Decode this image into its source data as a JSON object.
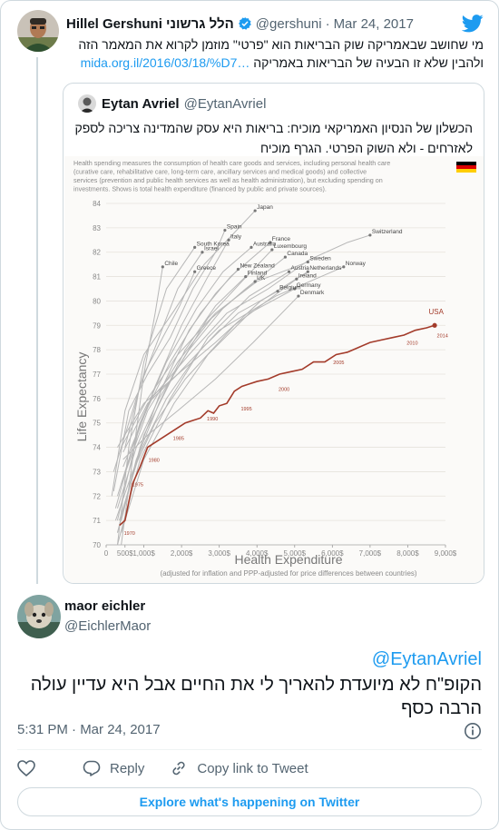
{
  "parent_tweet": {
    "display_name": "Hillel Gershuni הלל גרשוני",
    "handle": "@gershuni",
    "separator": "·",
    "date": "Mar 24, 2017",
    "text_line1": "מי שחושב שבאמריקה שוק הבריאות הוא \"פרטי\" מוזמן לקרוא את המאמר הזה",
    "text_line2_prefix": "ולהבין שלא זו הבעיה של הבריאות באמריקה",
    "link": "mida.org.il/2016/03/18/%D7…",
    "avatar_icon": "person-avatar-icon",
    "verified_icon": "verified-badge-icon",
    "brand_icon": "twitter-bird-icon",
    "accent_color": "#1d9bf0"
  },
  "quoted_tweet": {
    "display_name": "Eytan Avriel",
    "handle": "@EytanAvriel",
    "text": "הכשלון של הנסיון האמריקאי מוכיח: בריאות היא עסק שהמדינה צריכה לספק לאזרחים  - ולא השוק הפרטי. הגרף מוכיח"
  },
  "chart_data": {
    "type": "line",
    "intro": "Health spending measures the consumption of health care goods and services, including personal health care (curative care, rehabilitative care, long-term care, ancillary services and medical goods) and collective services (prevention and public health services as well as health administration), but excluding spending on investments. Shows is total health expenditure (financed by public and private sources).",
    "xlabel": "Health Expenditure",
    "xsubtitle": "(adjusted for inflation and PPP-adjusted for price differences between countries)",
    "ylabel": "Life Expectancy",
    "xlim": [
      0,
      9000
    ],
    "ylim": [
      70,
      84
    ],
    "xticks": [
      "0",
      "500$",
      "1,000$",
      "2,000$",
      "3,000$",
      "4,000$",
      "5,000$",
      "6,000$",
      "7,000$",
      "8,000$",
      "9,000$"
    ],
    "yticks": [
      "70",
      "71",
      "72",
      "73",
      "74",
      "75",
      "76",
      "77",
      "78",
      "79",
      "80",
      "81",
      "82",
      "83",
      "84"
    ],
    "country_labels": [
      {
        "name": "Japan",
        "x": 3950,
        "y": 83.7
      },
      {
        "name": "Spain",
        "x": 3150,
        "y": 82.9
      },
      {
        "name": "Switzerland",
        "x": 7000,
        "y": 82.7
      },
      {
        "name": "Italy",
        "x": 3250,
        "y": 82.5
      },
      {
        "name": "South Korea",
        "x": 2350,
        "y": 82.2
      },
      {
        "name": "Israel",
        "x": 2550,
        "y": 82.0
      },
      {
        "name": "Australia",
        "x": 3850,
        "y": 82.2
      },
      {
        "name": "France",
        "x": 4350,
        "y": 82.4
      },
      {
        "name": "Luxembourg",
        "x": 4400,
        "y": 82.1
      },
      {
        "name": "Canada",
        "x": 4750,
        "y": 81.8
      },
      {
        "name": "Sweden",
        "x": 5350,
        "y": 81.6
      },
      {
        "name": "Norway",
        "x": 6300,
        "y": 81.4
      },
      {
        "name": "Chile",
        "x": 1500,
        "y": 81.4
      },
      {
        "name": "Greece",
        "x": 2350,
        "y": 81.2
      },
      {
        "name": "New Zealand",
        "x": 3500,
        "y": 81.3
      },
      {
        "name": "Finland",
        "x": 3700,
        "y": 81.0
      },
      {
        "name": "UK",
        "x": 3950,
        "y": 80.8
      },
      {
        "name": "Austria",
        "x": 4850,
        "y": 81.2
      },
      {
        "name": "Netherlands",
        "x": 5350,
        "y": 81.2
      },
      {
        "name": "Ireland",
        "x": 5050,
        "y": 80.9
      },
      {
        "name": "Germany",
        "x": 5000,
        "y": 80.5
      },
      {
        "name": "Belgium",
        "x": 4550,
        "y": 80.4
      },
      {
        "name": "Denmark",
        "x": 5100,
        "y": 80.2
      },
      {
        "name": "USA",
        "x": 8700,
        "y": 79.3
      }
    ],
    "series": [
      {
        "name": "USA",
        "x": [
          355,
          500,
          700,
          900,
          1100,
          1300,
          1500,
          1700,
          1900,
          2100,
          2300,
          2500,
          2700,
          2850,
          3000,
          3200,
          3400,
          3600,
          3800,
          4000,
          4300,
          4600,
          4900,
          5200,
          5500,
          5800,
          6100,
          6400,
          6700,
          7000,
          7300,
          7600,
          7900,
          8200,
          8500,
          8713
        ],
        "y": [
          70.8,
          71.0,
          72.5,
          73.2,
          74.0,
          74.2,
          74.4,
          74.6,
          74.8,
          75.0,
          75.1,
          75.2,
          75.5,
          75.4,
          75.7,
          75.8,
          76.3,
          76.5,
          76.6,
          76.7,
          76.8,
          77.0,
          77.1,
          77.2,
          77.5,
          77.5,
          77.8,
          77.9,
          78.1,
          78.3,
          78.4,
          78.5,
          78.6,
          78.8,
          78.9,
          79.0
        ],
        "year_labels": [
          {
            "label": "1970",
            "x": 400,
            "y": 70.7
          },
          {
            "label": "1975",
            "x": 620,
            "y": 72.7
          },
          {
            "label": "1980",
            "x": 1050,
            "y": 73.7
          },
          {
            "label": "1985",
            "x": 1700,
            "y": 74.6
          },
          {
            "label": "1990",
            "x": 2600,
            "y": 75.4
          },
          {
            "label": "1995",
            "x": 3500,
            "y": 75.8
          },
          {
            "label": "2000",
            "x": 4500,
            "y": 76.6
          },
          {
            "label": "2005",
            "x": 5950,
            "y": 77.7
          },
          {
            "label": "2010",
            "x": 7900,
            "y": 78.5
          },
          {
            "label": "2014",
            "x": 8700,
            "y": 78.8
          }
        ]
      }
    ],
    "other_series": [
      {
        "name": "Japan",
        "x": [
          150,
          500,
          1000,
          1800,
          2600,
          3400,
          3950
        ],
        "y": [
          72.0,
          75.5,
          77.8,
          79.6,
          81.5,
          82.8,
          83.7
        ]
      },
      {
        "name": "Spain",
        "x": [
          200,
          600,
          1100,
          1700,
          2300,
          2900,
          3150
        ],
        "y": [
          72.2,
          75.5,
          77.0,
          78.5,
          80.5,
          82.0,
          82.9
        ]
      },
      {
        "name": "Switzerland",
        "x": [
          450,
          1200,
          2200,
          3200,
          4300,
          5400,
          6400,
          7000
        ],
        "y": [
          73.2,
          76.0,
          77.8,
          79.5,
          80.5,
          81.7,
          82.4,
          82.7
        ]
      },
      {
        "name": "Italy",
        "x": [
          250,
          700,
          1300,
          2000,
          2700,
          3250
        ],
        "y": [
          71.5,
          74.0,
          76.5,
          79.0,
          81.0,
          82.5
        ]
      },
      {
        "name": "South Korea",
        "x": [
          100,
          300,
          600,
          1000,
          1600,
          2350
        ],
        "y": [
          62.0,
          69.0,
          74.0,
          77.5,
          80.5,
          82.2
        ]
      },
      {
        "name": "Israel",
        "x": [
          500,
          900,
          1400,
          1900,
          2550
        ],
        "y": [
          74.0,
          76.5,
          78.5,
          80.5,
          82.0
        ]
      },
      {
        "name": "Australia",
        "x": [
          300,
          900,
          1600,
          2400,
          3100,
          3850
        ],
        "y": [
          71.0,
          75.0,
          77.5,
          79.7,
          81.2,
          82.2
        ]
      },
      {
        "name": "France",
        "x": [
          300,
          900,
          1700,
          2500,
          3300,
          4350
        ],
        "y": [
          72.0,
          75.0,
          77.5,
          79.5,
          81.0,
          82.4
        ]
      },
      {
        "name": "Luxembourg",
        "x": [
          300,
          1000,
          1800,
          2700,
          3600,
          4400
        ],
        "y": [
          70.5,
          74.5,
          77.0,
          79.3,
          80.8,
          82.1
        ]
      },
      {
        "name": "Canada",
        "x": [
          400,
          1100,
          1900,
          2800,
          3700,
          4750
        ],
        "y": [
          72.5,
          75.5,
          77.5,
          79.3,
          80.5,
          81.8
        ]
      },
      {
        "name": "Sweden",
        "x": [
          400,
          1100,
          1900,
          2900,
          4000,
          5350
        ],
        "y": [
          74.0,
          76.0,
          77.8,
          79.5,
          80.8,
          81.6
        ]
      },
      {
        "name": "Norway",
        "x": [
          300,
          1000,
          1900,
          3000,
          4500,
          6300
        ],
        "y": [
          74.0,
          75.8,
          77.0,
          78.8,
          80.2,
          81.4
        ]
      },
      {
        "name": "Chile",
        "x": [
          150,
          400,
          700,
          1000,
          1300,
          1500
        ],
        "y": [
          62.0,
          68.0,
          73.5,
          77.0,
          79.5,
          81.4
        ]
      },
      {
        "name": "Greece",
        "x": [
          200,
          600,
          1000,
          1500,
          1950,
          2350
        ],
        "y": [
          73.0,
          75.0,
          77.0,
          78.5,
          79.8,
          81.2
        ]
      },
      {
        "name": "New Zealand",
        "x": [
          400,
          900,
          1500,
          2200,
          2900,
          3500
        ],
        "y": [
          71.0,
          74.0,
          76.5,
          78.8,
          80.3,
          81.3
        ]
      },
      {
        "name": "Finland",
        "x": [
          300,
          800,
          1400,
          2100,
          2900,
          3700
        ],
        "y": [
          70.5,
          73.5,
          75.8,
          78.0,
          79.8,
          81.0
        ]
      },
      {
        "name": "UK",
        "x": [
          300,
          800,
          1400,
          2200,
          3100,
          3950
        ],
        "y": [
          71.5,
          74.0,
          76.0,
          78.0,
          79.7,
          80.8
        ]
      },
      {
        "name": "Austria",
        "x": [
          300,
          900,
          1700,
          2700,
          3800,
          4850
        ],
        "y": [
          70.0,
          73.5,
          76.0,
          78.5,
          80.2,
          81.2
        ]
      },
      {
        "name": "Netherlands",
        "x": [
          450,
          1100,
          1900,
          2900,
          4100,
          5350
        ],
        "y": [
          73.8,
          75.8,
          77.0,
          78.3,
          80.0,
          81.2
        ]
      },
      {
        "name": "Ireland",
        "x": [
          250,
          700,
          1300,
          2100,
          3400,
          5050
        ],
        "y": [
          71.0,
          73.0,
          75.0,
          76.8,
          79.0,
          80.9
        ]
      },
      {
        "name": "Germany",
        "x": [
          400,
          1000,
          1800,
          2700,
          3800,
          5000
        ],
        "y": [
          70.5,
          73.5,
          75.8,
          77.8,
          79.5,
          80.5
        ]
      },
      {
        "name": "Belgium",
        "x": [
          350,
          900,
          1600,
          2500,
          3500,
          4550
        ],
        "y": [
          71.0,
          73.8,
          76.0,
          78.0,
          79.5,
          80.4
        ]
      },
      {
        "name": "Denmark",
        "x": [
          450,
          1100,
          1900,
          2900,
          3900,
          5100
        ],
        "y": [
          73.5,
          74.5,
          75.5,
          76.8,
          78.3,
          80.2
        ]
      }
    ]
  },
  "reply_tweet": {
    "display_name": "maor eichler",
    "handle": "@EichlerMaor",
    "mention": "@EytanAvriel",
    "text": "הקופ\"ח לא מיועדת להאריך לי את החיים אבל היא עדיין עולה הרבה כסף",
    "timestamp": "5:31 PM · Mar 24, 2017",
    "avatar_icon": "dog-avatar-icon",
    "info_icon": "info-icon"
  },
  "actions": {
    "like_icon": "heart-icon",
    "reply_label": "Reply",
    "reply_icon": "reply-icon",
    "copy_label": "Copy link to Tweet",
    "copy_icon": "link-icon"
  },
  "footer": {
    "explore_label": "Explore what's happening on Twitter"
  }
}
